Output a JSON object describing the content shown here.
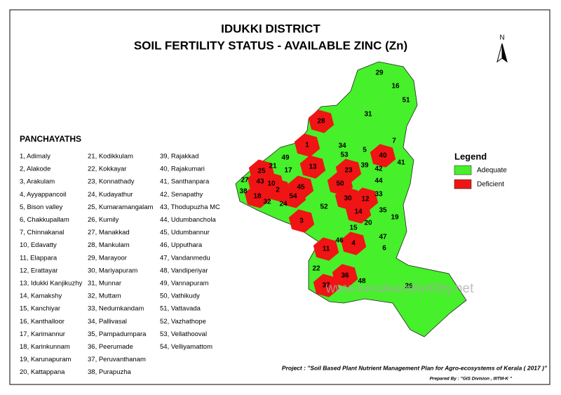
{
  "header": {
    "title_line1": "IDUKKI DISTRICT",
    "title_line2": "SOIL FERTILITY STATUS - AVAILABLE ZINC (Zn)"
  },
  "north_arrow": "N",
  "panchayaths": {
    "heading": "PANCHAYATHS",
    "columns": [
      [
        "1, Adimaly",
        "2, Alakode",
        "3, Arakulam",
        "4, Ayyappancoil",
        "5, Bison valley",
        "6, Chakkupallam",
        "7, Chinnakanal",
        "10, Edavatty",
        "11, Elappara",
        "12, Erattayar",
        "13, Idukki Kanjikuzhy",
        "14, Kamakshy",
        "15, Kanchiyar",
        "16, Kanthalloor",
        "17, Karimannur",
        "18, Karinkunnam",
        "19, Karunapuram",
        "20, Kattappana"
      ],
      [
        "21, Kodikkulam",
        "22, Kokkayar",
        "23, Konnathady",
        "24, Kudayathur",
        "25, Kumaramangalam",
        "26, Kumily",
        "27, Manakkad",
        "28, Mankulam",
        "29, Marayoor",
        "30, Mariyapuram",
        "31, Munnar",
        "32, Muttam",
        "33, Nedumkandam",
        "34, Pallivasal",
        "35, Pampadumpara",
        "36, Peerumade",
        "37, Peruvanthanam",
        "38, Purapuzha"
      ],
      [
        "39, Rajakkad",
        "40, Rajakumari",
        "41, Santhanpara",
        "42, Senapathy",
        "43, Thodupuzha MC",
        "44, Udumbanchola",
        "45, Udumbannur",
        "46, Upputhara",
        "47, Vandanmedu",
        "48, Vandiperiyar",
        "49, Vannapuram",
        "50, Vathikudy",
        "51, Vattavada",
        "52, Vazhathope",
        "53, Vellathooval",
        "54, Velliyamattom"
      ]
    ]
  },
  "legend": {
    "title": "Legend",
    "items": [
      {
        "label": "Adequate",
        "color": "#46f02a"
      },
      {
        "label": "Deficient",
        "color": "#f01414"
      }
    ]
  },
  "map": {
    "regions": [
      {
        "label": "29",
        "status": "Adequate"
      },
      {
        "label": "16",
        "status": "Adequate"
      },
      {
        "label": "51",
        "status": "Adequate"
      },
      {
        "label": "31",
        "status": "Adequate"
      },
      {
        "label": "28",
        "status": "Deficient"
      },
      {
        "label": "1",
        "status": "Deficient"
      },
      {
        "label": "34",
        "status": "Adequate"
      },
      {
        "label": "5",
        "status": "Adequate"
      },
      {
        "label": "7",
        "status": "Adequate"
      },
      {
        "label": "40",
        "status": "Deficient"
      },
      {
        "label": "41",
        "status": "Adequate"
      },
      {
        "label": "49",
        "status": "Adequate"
      },
      {
        "label": "21",
        "status": "Adequate"
      },
      {
        "label": "17",
        "status": "Adequate"
      },
      {
        "label": "13",
        "status": "Deficient"
      },
      {
        "label": "53",
        "status": "Adequate"
      },
      {
        "label": "23",
        "status": "Deficient"
      },
      {
        "label": "39",
        "status": "Adequate"
      },
      {
        "label": "42",
        "status": "Adequate"
      },
      {
        "label": "25",
        "status": "Deficient"
      },
      {
        "label": "43",
        "status": "Deficient"
      },
      {
        "label": "10",
        "status": "Deficient"
      },
      {
        "label": "27",
        "status": "Adequate"
      },
      {
        "label": "38",
        "status": "Adequate"
      },
      {
        "label": "18",
        "status": "Deficient"
      },
      {
        "label": "2",
        "status": "Deficient"
      },
      {
        "label": "45",
        "status": "Deficient"
      },
      {
        "label": "50",
        "status": "Deficient"
      },
      {
        "label": "44",
        "status": "Adequate"
      },
      {
        "label": "33",
        "status": "Adequate"
      },
      {
        "label": "32",
        "status": "Adequate"
      },
      {
        "label": "24",
        "status": "Adequate"
      },
      {
        "label": "54",
        "status": "Deficient"
      },
      {
        "label": "52",
        "status": "Adequate"
      },
      {
        "label": "30",
        "status": "Deficient"
      },
      {
        "label": "12",
        "status": "Deficient"
      },
      {
        "label": "14",
        "status": "Deficient"
      },
      {
        "label": "35",
        "status": "Adequate"
      },
      {
        "label": "19",
        "status": "Adequate"
      },
      {
        "label": "3",
        "status": "Deficient"
      },
      {
        "label": "20",
        "status": "Adequate"
      },
      {
        "label": "15",
        "status": "Adequate"
      },
      {
        "label": "47",
        "status": "Adequate"
      },
      {
        "label": "46",
        "status": "Adequate"
      },
      {
        "label": "4",
        "status": "Deficient"
      },
      {
        "label": "6",
        "status": "Adequate"
      },
      {
        "label": "11",
        "status": "Deficient"
      },
      {
        "label": "22",
        "status": "Adequate"
      },
      {
        "label": "36",
        "status": "Deficient"
      },
      {
        "label": "48",
        "status": "Adequate"
      },
      {
        "label": "37",
        "status": "Deficient"
      },
      {
        "label": "26",
        "status": "Adequate"
      }
    ],
    "watermark": "www.keralasoilfertility.net"
  },
  "footer": {
    "project": "Project : \"Soil Based Plant Nutrient Management Plan for Agro-ecosystems of Kerala ( 2017 )\"",
    "prepared_by": "Prepared By : \"GIS Division , IIITM-K \""
  }
}
